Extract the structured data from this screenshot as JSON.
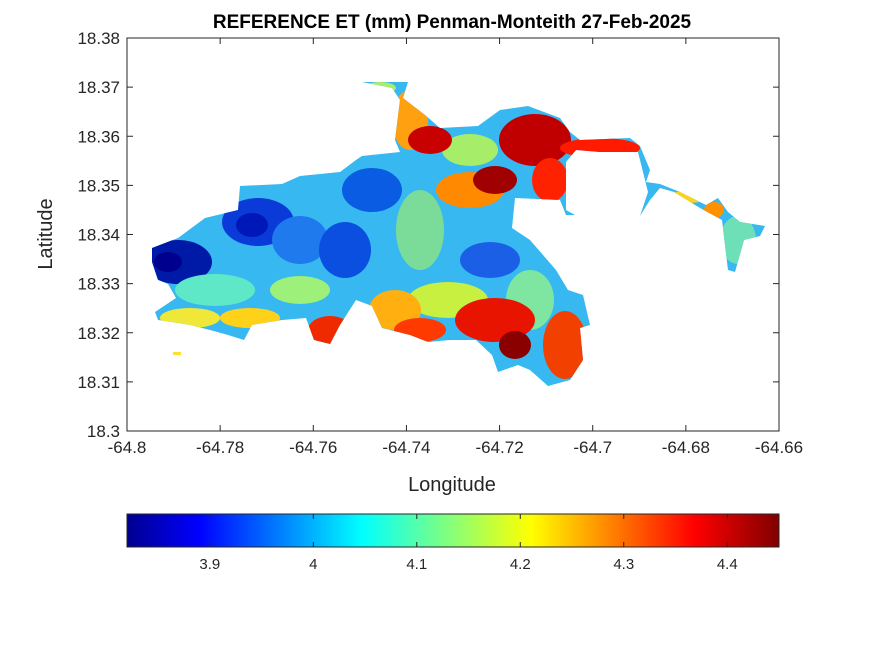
{
  "chart_data": {
    "type": "heatmap",
    "title": "REFERENCE ET (mm) Penman-Monteith 27-Feb-2025",
    "xlabel": "Longitude",
    "ylabel": "Latitude",
    "xlim": [
      -64.8,
      -64.66
    ],
    "ylim": [
      18.3,
      18.38
    ],
    "xticks": [
      "-64.8",
      "-64.78",
      "-64.76",
      "-64.74",
      "-64.72",
      "-64.7",
      "-64.68",
      "-64.66"
    ],
    "yticks": [
      "18.3",
      "18.31",
      "18.32",
      "18.33",
      "18.34",
      "18.35",
      "18.36",
      "18.37",
      "18.38"
    ],
    "colormap": "jet",
    "colorbar": {
      "orientation": "horizontal",
      "placement": "bottom",
      "range": [
        3.82,
        4.45
      ],
      "ticks": [
        "3.9",
        "4",
        "4.1",
        "4.2",
        "4.3",
        "4.4"
      ]
    },
    "grid": false
  }
}
